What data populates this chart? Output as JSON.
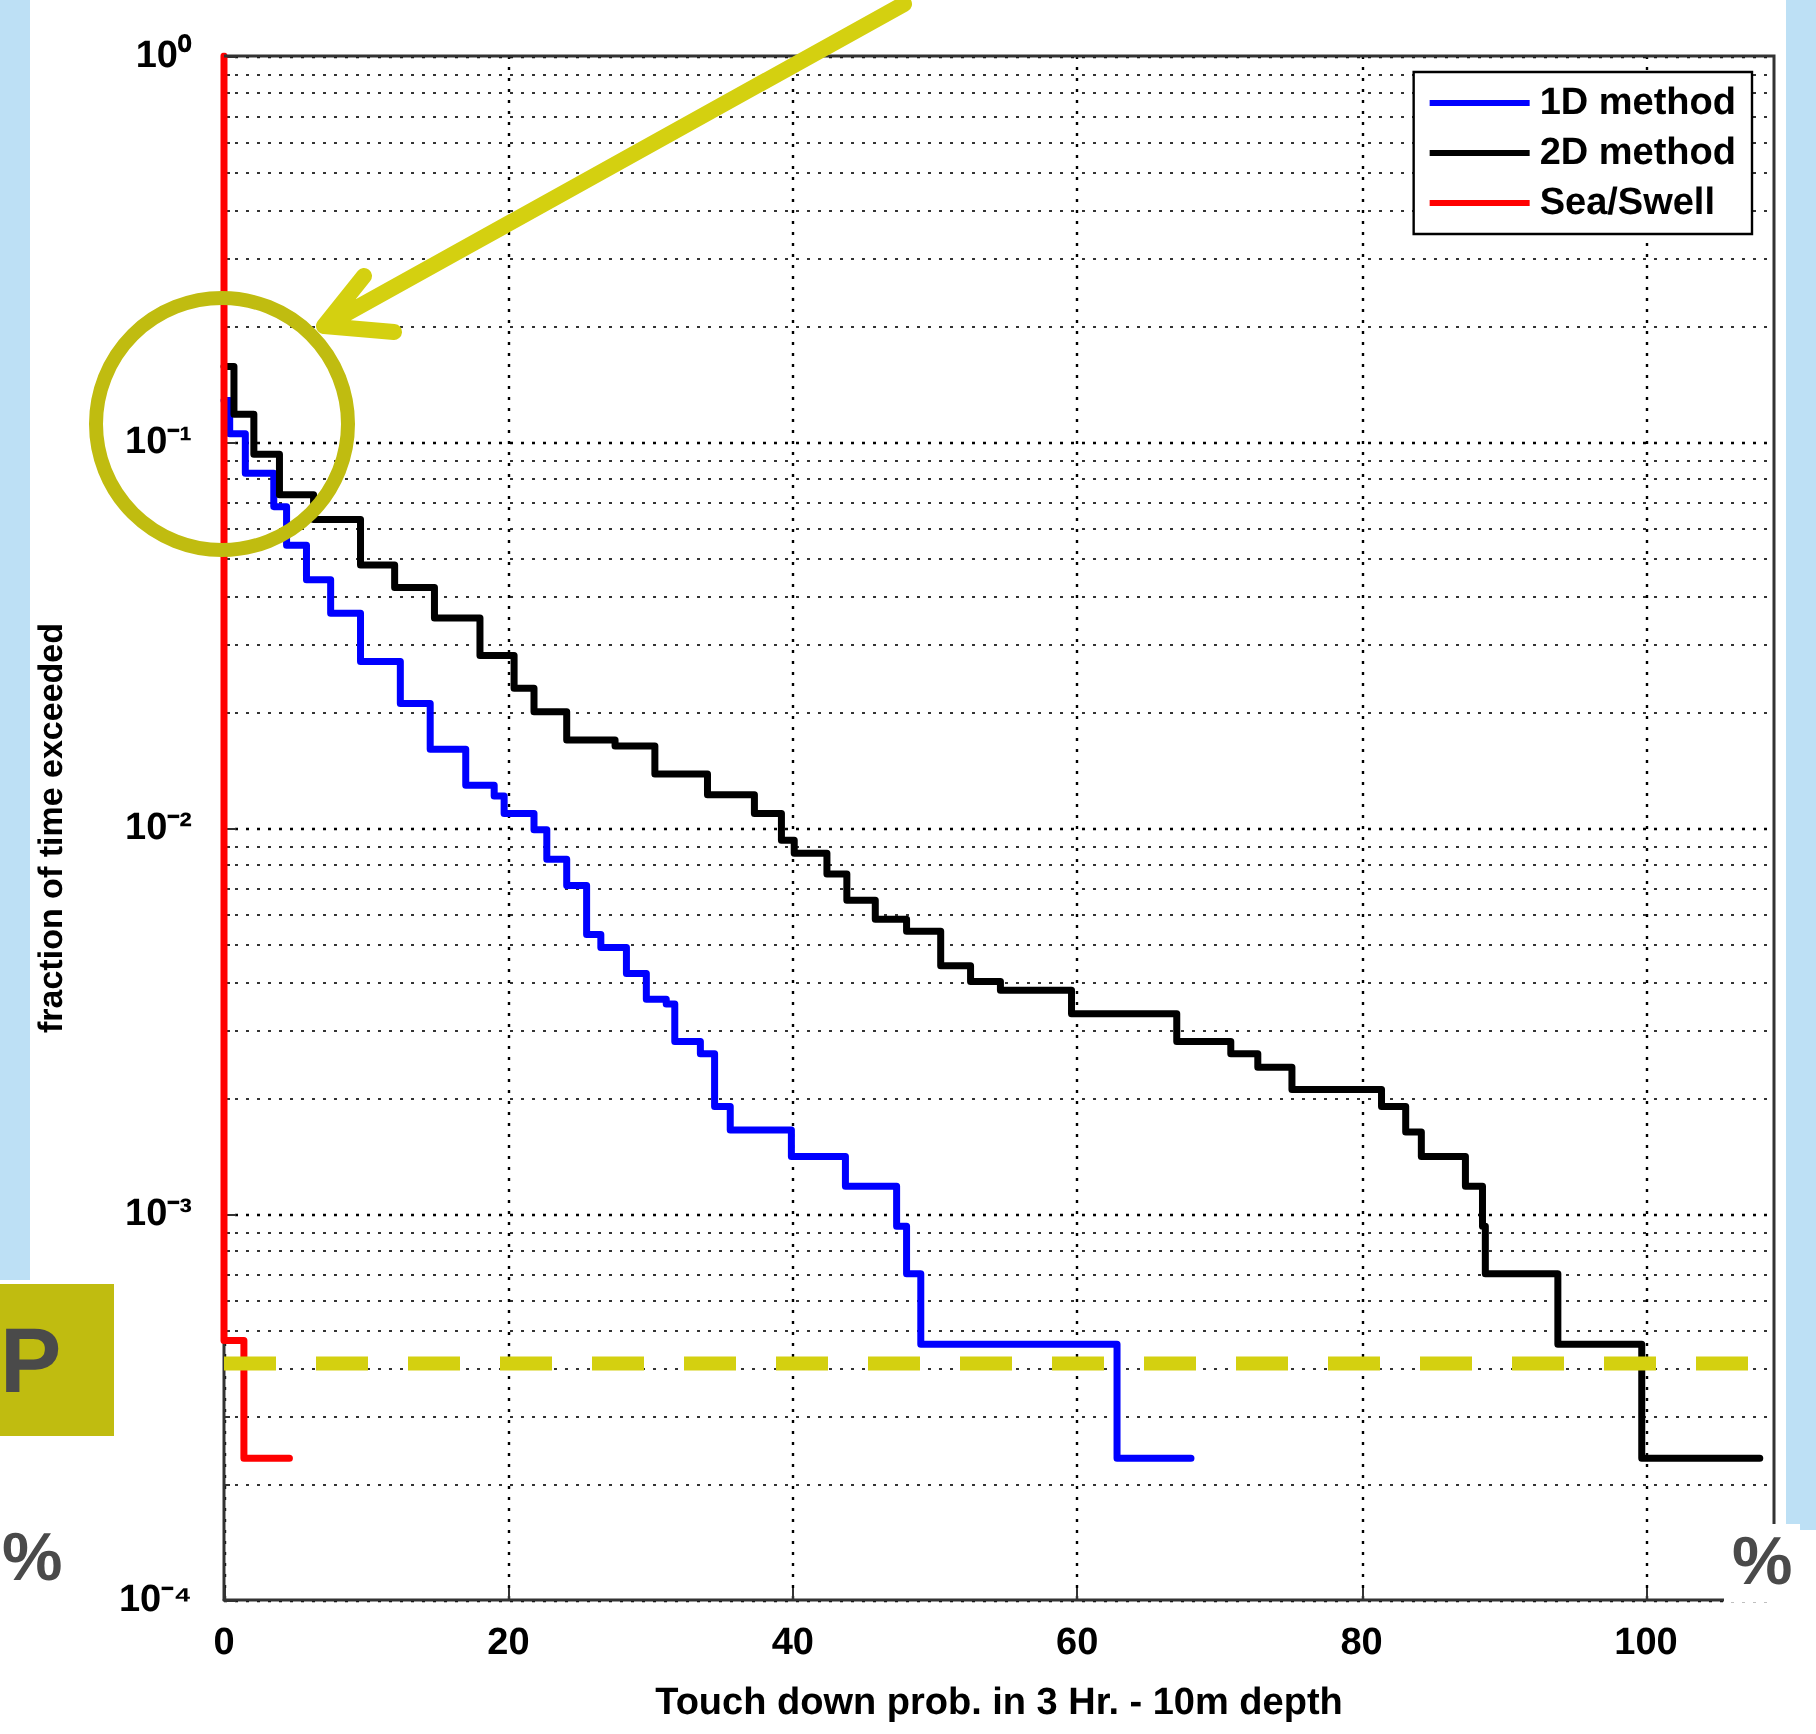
{
  "chart_data": {
    "type": "step",
    "xlabel": "Touch down prob. in 3 Hr. - 10m depth",
    "ylabel": "fraction of time exceeded",
    "xlim": [
      0,
      109
    ],
    "xticks": [
      0,
      20,
      40,
      60,
      80,
      100
    ],
    "ylim": [
      0.0001,
      1
    ],
    "yticks": [
      {
        "value": 0.0001,
        "label": "10⁻⁴"
      },
      {
        "value": 0.001,
        "label": "10⁻³"
      },
      {
        "value": 0.01,
        "label": "10⁻²"
      },
      {
        "value": 0.1,
        "label": "10⁻¹"
      },
      {
        "value": 1,
        "label": "10⁰"
      }
    ],
    "log": "y",
    "grid": true,
    "legend": "top right",
    "marker": "none",
    "line_style": "solid",
    "series": [
      {
        "name": "1D method",
        "color": "#0000ff",
        "x": [
          0,
          0.4,
          1.5,
          3.5,
          4.4,
          5.8,
          7.5,
          9.6,
          12.4,
          14.5,
          17.0,
          19.0,
          19.7,
          21.8,
          22.7,
          24.1,
          25.5,
          26.5,
          28.3,
          29.7,
          31.1,
          31.7,
          33.5,
          34.5,
          35.6,
          39.9,
          43.7,
          47.3,
          48.0,
          49.0,
          62.8,
          68.0
        ],
        "values": [
          0.128,
          0.105,
          0.083,
          0.068,
          0.054,
          0.044,
          0.036,
          0.027,
          0.021,
          0.016,
          0.0129,
          0.0121,
          0.0109,
          0.0099,
          0.0083,
          0.0071,
          0.0053,
          0.0049,
          0.0042,
          0.0036,
          0.0035,
          0.0028,
          0.0026,
          0.0019,
          0.00165,
          0.00141,
          0.00118,
          0.00093,
          0.0007,
          0.00046,
          0.000233,
          0.000233
        ]
      },
      {
        "name": "2D method",
        "color": "#000000",
        "x": [
          0,
          0.7,
          2.1,
          3.9,
          6.3,
          9.6,
          12.0,
          14.8,
          18.0,
          20.4,
          21.8,
          24.1,
          27.5,
          30.3,
          34.0,
          37.3,
          39.2,
          40.1,
          42.4,
          43.8,
          45.8,
          48.0,
          50.4,
          52.5,
          54.6,
          59.6,
          67.0,
          70.8,
          72.7,
          75.1,
          81.4,
          83.1,
          84.2,
          87.3,
          88.5,
          88.7,
          93.8,
          99.7,
          108.0
        ],
        "values": [
          0.157,
          0.118,
          0.093,
          0.073,
          0.063,
          0.048,
          0.042,
          0.035,
          0.028,
          0.023,
          0.02,
          0.0169,
          0.0163,
          0.0138,
          0.0122,
          0.0109,
          0.0093,
          0.0086,
          0.0076,
          0.0065,
          0.0058,
          0.0054,
          0.0044,
          0.004,
          0.0038,
          0.0033,
          0.0028,
          0.0026,
          0.0024,
          0.0021,
          0.0019,
          0.00163,
          0.00141,
          0.00118,
          0.00093,
          0.0007,
          0.00046,
          0.000233,
          0.000233
        ]
      },
      {
        "name": "Sea/Swell",
        "color": "#ff0000",
        "x": [
          0,
          0,
          1.4,
          4.6
        ],
        "values": [
          1,
          0.00047,
          0.000233,
          0.000233
        ]
      }
    ],
    "ref_lines": [
      {
        "axis": "y",
        "value": 0.00041,
        "color": "#d4d010",
        "line_style": "dashed"
      }
    ],
    "annotations": [
      "P",
      "%",
      "%"
    ]
  }
}
